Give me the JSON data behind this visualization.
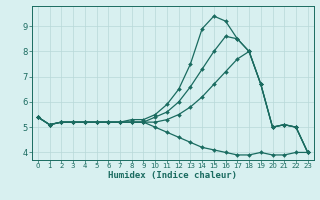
{
  "xlabel": "Humidex (Indice chaleur)",
  "bg_color": "#d8f0f0",
  "grid_color": "#b8d8d8",
  "line_color": "#1a6b60",
  "xlim": [
    -0.5,
    23.5
  ],
  "ylim": [
    3.7,
    9.8
  ],
  "yticks": [
    4,
    5,
    6,
    7,
    8,
    9
  ],
  "xticks": [
    0,
    1,
    2,
    3,
    4,
    5,
    6,
    7,
    8,
    9,
    10,
    11,
    12,
    13,
    14,
    15,
    16,
    17,
    18,
    19,
    20,
    21,
    22,
    23
  ],
  "series": [
    {
      "x": [
        0,
        1,
        2,
        3,
        4,
        5,
        6,
        7,
        8,
        9,
        10,
        11,
        12,
        13,
        14,
        15,
        16,
        17,
        18,
        19,
        20,
        21,
        22,
        23
      ],
      "y": [
        5.4,
        5.1,
        5.2,
        5.2,
        5.2,
        5.2,
        5.2,
        5.2,
        5.3,
        5.3,
        5.5,
        5.9,
        6.5,
        7.5,
        8.9,
        9.4,
        9.2,
        8.5,
        8.0,
        6.7,
        5.0,
        5.1,
        5.0,
        4.0
      ]
    },
    {
      "x": [
        0,
        1,
        2,
        3,
        4,
        5,
        6,
        7,
        8,
        9,
        10,
        11,
        12,
        13,
        14,
        15,
        16,
        17,
        18,
        19,
        20,
        21,
        22,
        23
      ],
      "y": [
        5.4,
        5.1,
        5.2,
        5.2,
        5.2,
        5.2,
        5.2,
        5.2,
        5.2,
        5.2,
        5.4,
        5.6,
        6.0,
        6.6,
        7.3,
        8.0,
        8.6,
        8.5,
        8.0,
        6.7,
        5.0,
        5.1,
        5.0,
        4.0
      ]
    },
    {
      "x": [
        0,
        1,
        2,
        3,
        4,
        5,
        6,
        7,
        8,
        9,
        10,
        11,
        12,
        13,
        14,
        15,
        16,
        17,
        18,
        19,
        20,
        21,
        22,
        23
      ],
      "y": [
        5.4,
        5.1,
        5.2,
        5.2,
        5.2,
        5.2,
        5.2,
        5.2,
        5.2,
        5.2,
        5.2,
        5.3,
        5.5,
        5.8,
        6.2,
        6.7,
        7.2,
        7.7,
        8.0,
        6.7,
        5.0,
        5.1,
        5.0,
        4.0
      ]
    },
    {
      "x": [
        0,
        1,
        2,
        3,
        4,
        5,
        6,
        7,
        8,
        9,
        10,
        11,
        12,
        13,
        14,
        15,
        16,
        17,
        18,
        19,
        20,
        21,
        22,
        23
      ],
      "y": [
        5.4,
        5.1,
        5.2,
        5.2,
        5.2,
        5.2,
        5.2,
        5.2,
        5.2,
        5.2,
        5.0,
        4.8,
        4.6,
        4.4,
        4.2,
        4.1,
        4.0,
        3.9,
        3.9,
        4.0,
        3.9,
        3.9,
        4.0,
        4.0
      ]
    }
  ]
}
